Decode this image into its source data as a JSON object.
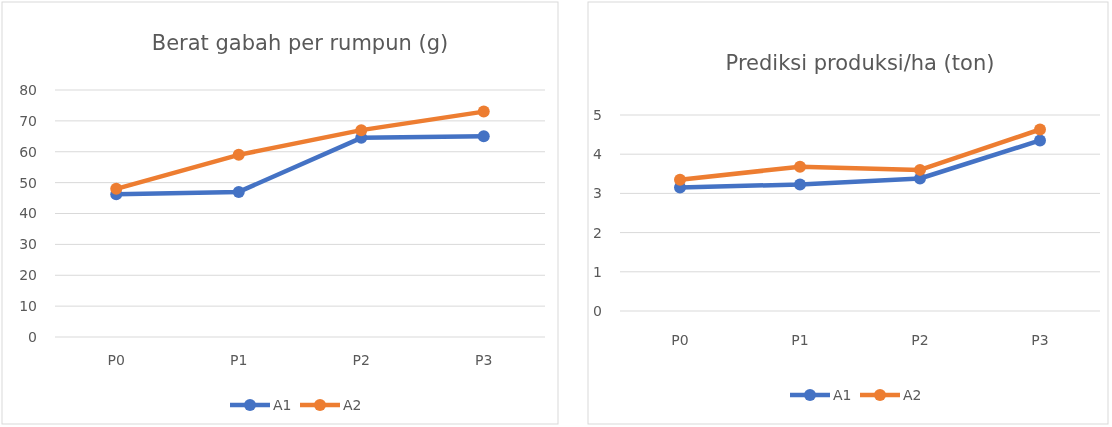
{
  "chart_data": [
    {
      "type": "line",
      "title": "Berat gabah per rumpun (g)",
      "categories": [
        "P0",
        "P1",
        "P2",
        "P3"
      ],
      "series": [
        {
          "name": "A1",
          "color": "#4472c4",
          "values": [
            46.2,
            47,
            64.5,
            65
          ]
        },
        {
          "name": "A2",
          "color": "#ed7d31",
          "values": [
            48,
            59,
            67,
            73
          ]
        }
      ],
      "ylim": [
        0,
        80
      ],
      "yticks": [
        0,
        10,
        20,
        30,
        40,
        50,
        60,
        70,
        80
      ],
      "grid": "y",
      "legend": "bottom",
      "marker": "circle"
    },
    {
      "type": "line",
      "title": "Prediksi produksi/ha (ton)",
      "categories": [
        "P0",
        "P1",
        "P2",
        "P3"
      ],
      "series": [
        {
          "name": "A1",
          "color": "#4472c4",
          "values": [
            3.15,
            3.23,
            3.38,
            4.35
          ]
        },
        {
          "name": "A2",
          "color": "#ed7d31",
          "values": [
            3.35,
            3.68,
            3.6,
            4.63
          ]
        }
      ],
      "ylim": [
        0,
        5
      ],
      "yticks": [
        0,
        1,
        2,
        3,
        4,
        5
      ],
      "grid": "y",
      "legend": "bottom",
      "marker": "circle"
    }
  ]
}
